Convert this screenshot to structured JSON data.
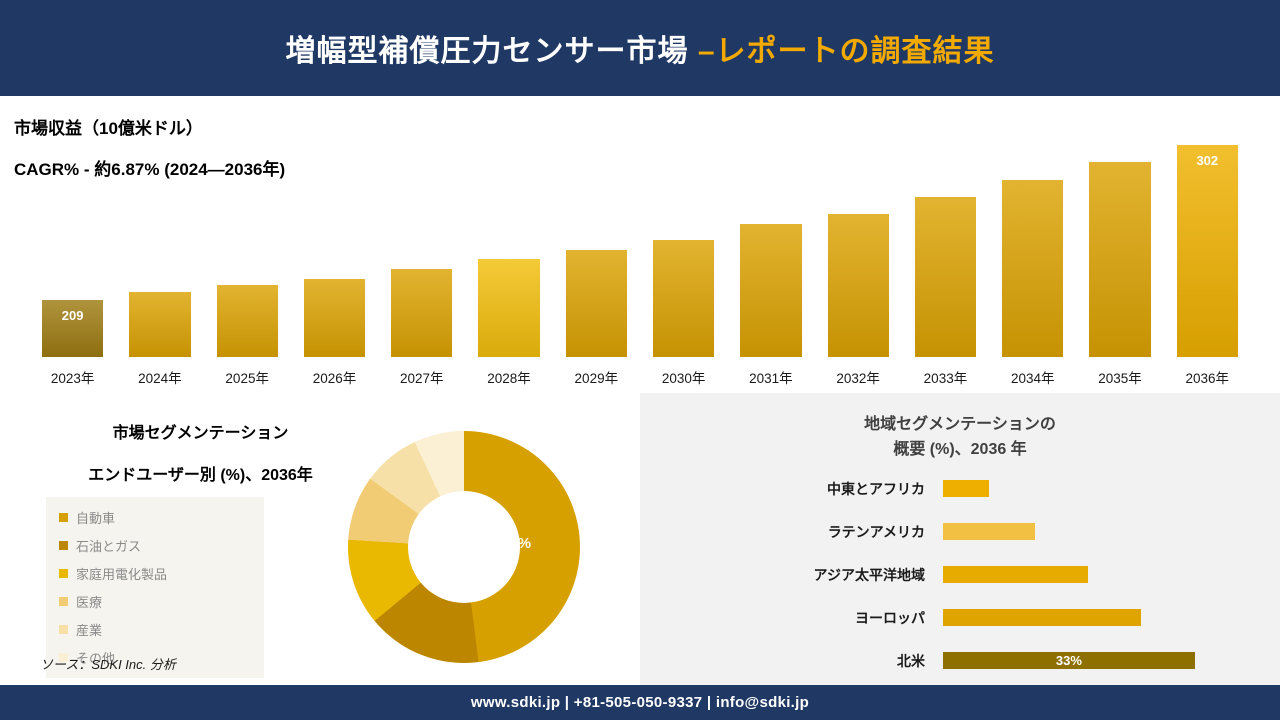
{
  "theme": {
    "navy": "#203864",
    "gold": "#F2A900",
    "panel_gray": "#F2F2F2",
    "legend_bg": "#F5F4EF"
  },
  "header": {
    "title_main": "増幅型補償圧力センサー市場 ",
    "title_accent": "–レポートの調査結果"
  },
  "revenue": {
    "metric": "市場収益（10億米ドル）",
    "cagr": "CAGR% - 約6.87% (2024―2036年)"
  },
  "segmentation": {
    "title": "市場セグメンテーション",
    "subtitle": "エンドユーザー別 (%)、2036年",
    "donut_label": "48%",
    "source": "ソース：SDKI Inc. 分析"
  },
  "regional": {
    "title_line1": "地域セグメンテーションの",
    "title_line2": "概要 (%)、2036 年"
  },
  "footer": {
    "text": "www.sdki.jp | +81-505-050-9337 | info@sdki.jp"
  },
  "chart_data": [
    {
      "id": "revenue_bars",
      "type": "bar",
      "title": "市場収益（10億米ドル）",
      "subtitle": "CAGR% - 約6.87% (2024―2036年)",
      "categories": [
        "2023年",
        "2024年",
        "2025年",
        "2026年",
        "2027年",
        "2028年",
        "2029年",
        "2030年",
        "2031年",
        "2032年",
        "2033年",
        "2034年",
        "2035年",
        "2036年"
      ],
      "values": [
        209,
        214,
        218,
        222,
        228,
        234,
        239,
        245,
        255,
        261,
        271,
        281,
        292,
        302
      ],
      "value_labels": [
        "209",
        "",
        "",
        "",
        "",
        "",
        "",
        "",
        "",
        "",
        "",
        "",
        "",
        "302"
      ],
      "bar_colors": [
        "#9E7C12",
        "#DCA303",
        "#DCA303",
        "#DCA303",
        "#DCA303",
        "#F2BE0C",
        "#DCA303",
        "#DCA303",
        "#DCA303",
        "#DCA303",
        "#DCA303",
        "#DCA303",
        "#DCA303",
        "#EFB100"
      ],
      "ylim": [
        175,
        310
      ],
      "grid": false,
      "legend_position": "none"
    },
    {
      "id": "end_user_donut",
      "type": "pie",
      "title": "市場セグメンテーション エンドユーザー別 (%)、2036年",
      "categories": [
        "自動車",
        "石油とガス",
        "家庭用電化製品",
        "医療",
        "産業",
        "その他"
      ],
      "values": [
        48,
        16,
        12,
        9,
        8,
        7
      ],
      "colors": [
        "#D5A000",
        "#BC8600",
        "#E9B800",
        "#F2CC74",
        "#F7E0A8",
        "#FBEFD4"
      ],
      "labeled_slice": "48%",
      "legend_position": "left"
    },
    {
      "id": "regional_bars",
      "type": "bar",
      "orientation": "horizontal",
      "title": "地域セグメンテーションの概要 (%)、2036 年",
      "categories": [
        "中東とアフリカ",
        "ラテンアメリカ",
        "アジア太平洋地域",
        "ヨーロッパ",
        "北米"
      ],
      "values": [
        6,
        12,
        19,
        26,
        33
      ],
      "value_labels": [
        "",
        "",
        "",
        "",
        "33%"
      ],
      "bar_colors": [
        "#EFAF00",
        "#F2C143",
        "#E7AB00",
        "#DFA400",
        "#8E7000"
      ],
      "xlim": [
        0,
        35
      ],
      "grid": false,
      "legend_position": "none"
    }
  ]
}
